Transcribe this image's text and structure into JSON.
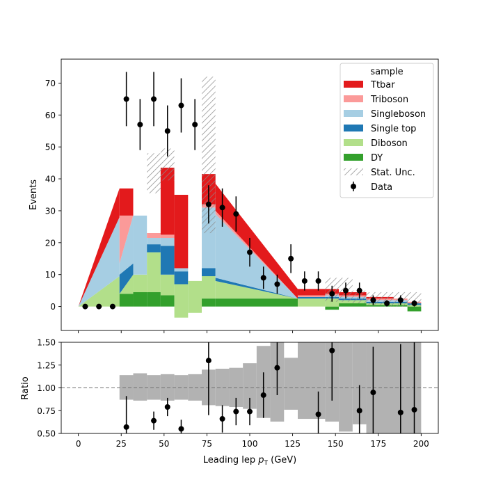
{
  "chart_data": [
    {
      "type": "area",
      "panel": "main",
      "ylabel": "Events",
      "xlim": [
        -10,
        210
      ],
      "ylim": [
        -7.5,
        77.5
      ],
      "yticks": [
        0,
        10,
        20,
        30,
        40,
        50,
        60,
        70
      ],
      "xticks": [
        0,
        25,
        50,
        75,
        100,
        125,
        150,
        175,
        200
      ],
      "legend": {
        "title": "sample",
        "position": "top-right",
        "entries": [
          {
            "label": "Ttbar",
            "kind": "patch",
            "color": "#e31a1c"
          },
          {
            "label": "Triboson",
            "kind": "patch",
            "color": "#fb9a99"
          },
          {
            "label": "Singleboson",
            "kind": "patch",
            "color": "#a6cee3"
          },
          {
            "label": "Single top",
            "kind": "patch",
            "color": "#1f78b4"
          },
          {
            "label": "Diboson",
            "kind": "patch",
            "color": "#b2df8a"
          },
          {
            "label": "DY",
            "kind": "patch",
            "color": "#33a02c"
          },
          {
            "label": "Stat. Unc.",
            "kind": "hatch",
            "color": "#888888"
          },
          {
            "label": "Data",
            "kind": "errorbar",
            "color": "#000000"
          }
        ]
      },
      "stack_order": [
        "DY",
        "Diboson",
        "Single top",
        "Singleboson",
        "Triboson",
        "Ttbar"
      ],
      "series_colors": {
        "DY": "#33a02c",
        "Diboson": "#b2df8a",
        "Single top": "#1f78b4",
        "Singleboson": "#a6cee3",
        "Triboson": "#fb9a99",
        "Ttbar": "#e31a1c"
      },
      "x_edges": [
        0,
        24,
        24,
        40,
        48,
        56,
        64,
        72,
        80,
        96,
        104,
        112,
        120,
        128,
        144,
        152,
        160,
        168,
        176,
        184,
        192,
        200
      ],
      "stack_segments": [
        {
          "x": [
            0,
            24
          ],
          "bottom": [
            0,
            0
          ],
          "tops": [
            [
              0,
              0
            ],
            [
              0,
              9.5
            ],
            [
              0,
              9.5
            ],
            [
              0,
              28
            ],
            [
              0,
              28
            ],
            [
              0,
              37
            ]
          ]
        },
        {
          "x": [
            24,
            32
          ],
          "bottom": [
            0,
            0
          ],
          "tops": [
            [
              4,
              4
            ],
            [
              4,
              10
            ],
            [
              10,
              13.5
            ],
            [
              13.5,
              28.5
            ],
            [
              28.5,
              28.5
            ],
            [
              37,
              37
            ]
          ]
        },
        {
          "x": [
            32,
            40
          ],
          "bottom": [
            0,
            0
          ],
          "tops": [
            [
              4.5,
              4.5
            ],
            [
              10,
              10
            ],
            [
              10,
              10
            ],
            [
              28.5,
              28.5
            ],
            [
              28.5,
              28.5
            ],
            [
              28.5,
              28.5
            ]
          ]
        },
        {
          "x": [
            40,
            48
          ],
          "bottom": [
            0,
            0
          ],
          "tops": [
            [
              4.5,
              4.5
            ],
            [
              17,
              17
            ],
            [
              19.5,
              19.5
            ],
            [
              21.5,
              21.5
            ],
            [
              23,
              23
            ],
            [
              23,
              23
            ]
          ]
        },
        {
          "x": [
            48,
            56
          ],
          "bottom": [
            0,
            0
          ],
          "tops": [
            [
              3.5,
              3.5
            ],
            [
              10,
              10
            ],
            [
              19,
              19
            ],
            [
              21.5,
              21.5
            ],
            [
              22.5,
              22.5
            ],
            [
              43.5,
              43.5
            ]
          ]
        },
        {
          "x": [
            56,
            64
          ],
          "bottom": [
            -3.5,
            -3.5
          ],
          "tops": [
            [
              -3.5,
              -3.5
            ],
            [
              7,
              7
            ],
            [
              11,
              11
            ],
            [
              12,
              12
            ],
            [
              12,
              12
            ],
            [
              35,
              35
            ]
          ]
        },
        {
          "x": [
            64,
            72
          ],
          "bottom": [
            -2,
            -2
          ],
          "tops": [
            [
              -2,
              -2
            ],
            [
              8,
              8
            ],
            [
              8,
              8
            ],
            [
              8,
              8
            ],
            [
              8,
              8
            ],
            [
              8,
              8
            ]
          ]
        },
        {
          "x": [
            72,
            80
          ],
          "bottom": [
            0,
            0
          ],
          "tops": [
            [
              2.5,
              2.5
            ],
            [
              9.5,
              9.5
            ],
            [
              12,
              12
            ],
            [
              31,
              31
            ],
            [
              32,
              32
            ],
            [
              41.5,
              41.5
            ]
          ]
        },
        {
          "x": [
            80,
            128
          ],
          "bottom": [
            0,
            0
          ],
          "tops": [
            [
              2.5,
              2.5
            ],
            [
              8,
              2.5
            ],
            [
              9,
              2.5
            ],
            [
              29,
              2.5
            ],
            [
              30,
              2.5
            ],
            [
              38.5,
              5.5
            ]
          ]
        },
        {
          "x": [
            128,
            144
          ],
          "bottom": [
            0,
            0
          ],
          "tops": [
            [
              0,
              0
            ],
            [
              2.5,
              2.5
            ],
            [
              3,
              3
            ],
            [
              3,
              3
            ],
            [
              3.5,
              3.5
            ],
            [
              5.5,
              5.5
            ]
          ]
        },
        {
          "x": [
            144,
            152
          ],
          "bottom": [
            -1,
            -1
          ],
          "tops": [
            [
              0,
              0
            ],
            [
              2.5,
              2.5
            ],
            [
              3,
              3
            ],
            [
              3.5,
              3.5
            ],
            [
              4,
              4
            ],
            [
              5.5,
              5.5
            ]
          ]
        },
        {
          "x": [
            152,
            168
          ],
          "bottom": [
            0,
            0
          ],
          "tops": [
            [
              1,
              1
            ],
            [
              2,
              2
            ],
            [
              2.5,
              2.5
            ],
            [
              3,
              3
            ],
            [
              3.5,
              3.5
            ],
            [
              4.5,
              4.5
            ]
          ]
        },
        {
          "x": [
            168,
            184
          ],
          "bottom": [
            0,
            0
          ],
          "tops": [
            [
              0.5,
              0.5
            ],
            [
              1,
              1
            ],
            [
              1.5,
              1.5
            ],
            [
              2,
              2
            ],
            [
              2.5,
              2.5
            ],
            [
              3,
              3
            ]
          ]
        },
        {
          "x": [
            184,
            192
          ],
          "bottom": [
            0,
            0
          ],
          "tops": [
            [
              0.5,
              0.5
            ],
            [
              1,
              1
            ],
            [
              1.5,
              1.5
            ],
            [
              2,
              2
            ],
            [
              2.5,
              2.5
            ],
            [
              2.5,
              2.5
            ]
          ]
        },
        {
          "x": [
            192,
            200
          ],
          "bottom": [
            -1.5,
            -1.5
          ],
          "tops": [
            [
              0,
              0
            ],
            [
              0.5,
              0.5
            ],
            [
              1,
              1
            ],
            [
              1,
              1
            ],
            [
              1.5,
              1.5
            ],
            [
              1.5,
              1.5
            ]
          ]
        }
      ],
      "stat_unc_bands": [
        {
          "x": [
            40,
            48
          ],
          "low": 35.5,
          "high": 48
        },
        {
          "x": [
            48,
            56
          ],
          "low": 39.5,
          "high": 49.5
        },
        {
          "x": [
            72,
            80
          ],
          "low": 23,
          "high": 72
        },
        {
          "x": [
            144,
            160
          ],
          "low": 1.5,
          "high": 9
        },
        {
          "x": [
            160,
            168
          ],
          "low": 1,
          "high": 5
        },
        {
          "x": [
            168,
            176
          ],
          "low": 0.5,
          "high": 4.5
        },
        {
          "x": [
            176,
            200
          ],
          "low": 0,
          "high": 4.5
        }
      ],
      "data_points": {
        "name": "Data",
        "x": [
          4,
          12,
          20,
          28,
          36,
          44,
          52,
          60,
          68,
          76,
          84,
          92,
          100,
          108,
          116,
          124,
          132,
          140,
          148,
          156,
          164,
          172,
          180,
          188,
          196
        ],
        "y": [
          0,
          0,
          0,
          65,
          57,
          65,
          55,
          63,
          57,
          32,
          31,
          29,
          17,
          9,
          7,
          15,
          8,
          8,
          4,
          5,
          5,
          2,
          1,
          2,
          1
        ],
        "yerr": [
          0,
          0,
          0,
          8.5,
          8,
          8.5,
          8,
          8.5,
          8,
          6,
          6,
          5.5,
          4.5,
          3.5,
          3,
          4.5,
          3,
          3,
          2.5,
          2.5,
          2.5,
          1.5,
          1,
          1.5,
          1
        ]
      }
    },
    {
      "type": "scatter",
      "panel": "ratio",
      "xlabel": "Leading lep p_T (GeV)",
      "xlabel_parts": {
        "pre": "Leading lep ",
        "symbol": "p",
        "sub": "T",
        "post": " (GeV)"
      },
      "ylabel": "Ratio",
      "xlim": [
        -10,
        210
      ],
      "ylim": [
        0.5,
        1.5
      ],
      "yticks": [
        0.5,
        0.75,
        1.0,
        1.25,
        1.5
      ],
      "ytick_labels": [
        "0.50",
        "0.75",
        "1.00",
        "1.25",
        "1.50"
      ],
      "xticks": [
        0,
        25,
        50,
        75,
        100,
        125,
        150,
        175,
        200
      ],
      "reference_line": 1.0,
      "unc_band": [
        {
          "x": [
            24,
            32
          ],
          "low": 0.87,
          "high": 1.14
        },
        {
          "x": [
            32,
            40
          ],
          "low": 0.86,
          "high": 1.16
        },
        {
          "x": [
            40,
            48
          ],
          "low": 0.87,
          "high": 1.14
        },
        {
          "x": [
            48,
            56
          ],
          "low": 0.86,
          "high": 1.15
        },
        {
          "x": [
            56,
            64
          ],
          "low": 0.87,
          "high": 1.14
        },
        {
          "x": [
            64,
            72
          ],
          "low": 0.86,
          "high": 1.15
        },
        {
          "x": [
            72,
            80
          ],
          "low": 0.81,
          "high": 1.2
        },
        {
          "x": [
            80,
            88
          ],
          "low": 0.8,
          "high": 1.21
        },
        {
          "x": [
            88,
            96
          ],
          "low": 0.79,
          "high": 1.22
        },
        {
          "x": [
            96,
            104
          ],
          "low": 0.77,
          "high": 1.27
        },
        {
          "x": [
            104,
            112
          ],
          "low": 0.67,
          "high": 1.46
        },
        {
          "x": [
            112,
            120
          ],
          "low": 0.63,
          "high": 1.5
        },
        {
          "x": [
            120,
            128
          ],
          "low": 0.76,
          "high": 1.33
        },
        {
          "x": [
            128,
            144
          ],
          "low": 0.66,
          "high": 1.5
        },
        {
          "x": [
            144,
            152
          ],
          "low": 0.63,
          "high": 1.5
        },
        {
          "x": [
            152,
            160
          ],
          "low": 0.52,
          "high": 1.5
        },
        {
          "x": [
            160,
            168
          ],
          "low": 0.6,
          "high": 1.5
        },
        {
          "x": [
            168,
            200
          ],
          "low": 0.5,
          "high": 1.5
        }
      ],
      "points": {
        "x": [
          28,
          44,
          52,
          60,
          76,
          84,
          92,
          100,
          108,
          116,
          140,
          148,
          164,
          172,
          188,
          196
        ],
        "y": [
          0.57,
          0.64,
          0.79,
          0.55,
          1.3,
          0.66,
          0.74,
          0.74,
          0.92,
          1.22,
          0.71,
          1.41,
          0.75,
          0.95,
          0.73,
          0.76
        ],
        "yerr": [
          0.34,
          0.1,
          0.1,
          0.1,
          0.6,
          0.15,
          0.15,
          0.15,
          0.25,
          0.3,
          0.25,
          0.55,
          0.28,
          0.5,
          0.75,
          0.75
        ]
      }
    }
  ]
}
